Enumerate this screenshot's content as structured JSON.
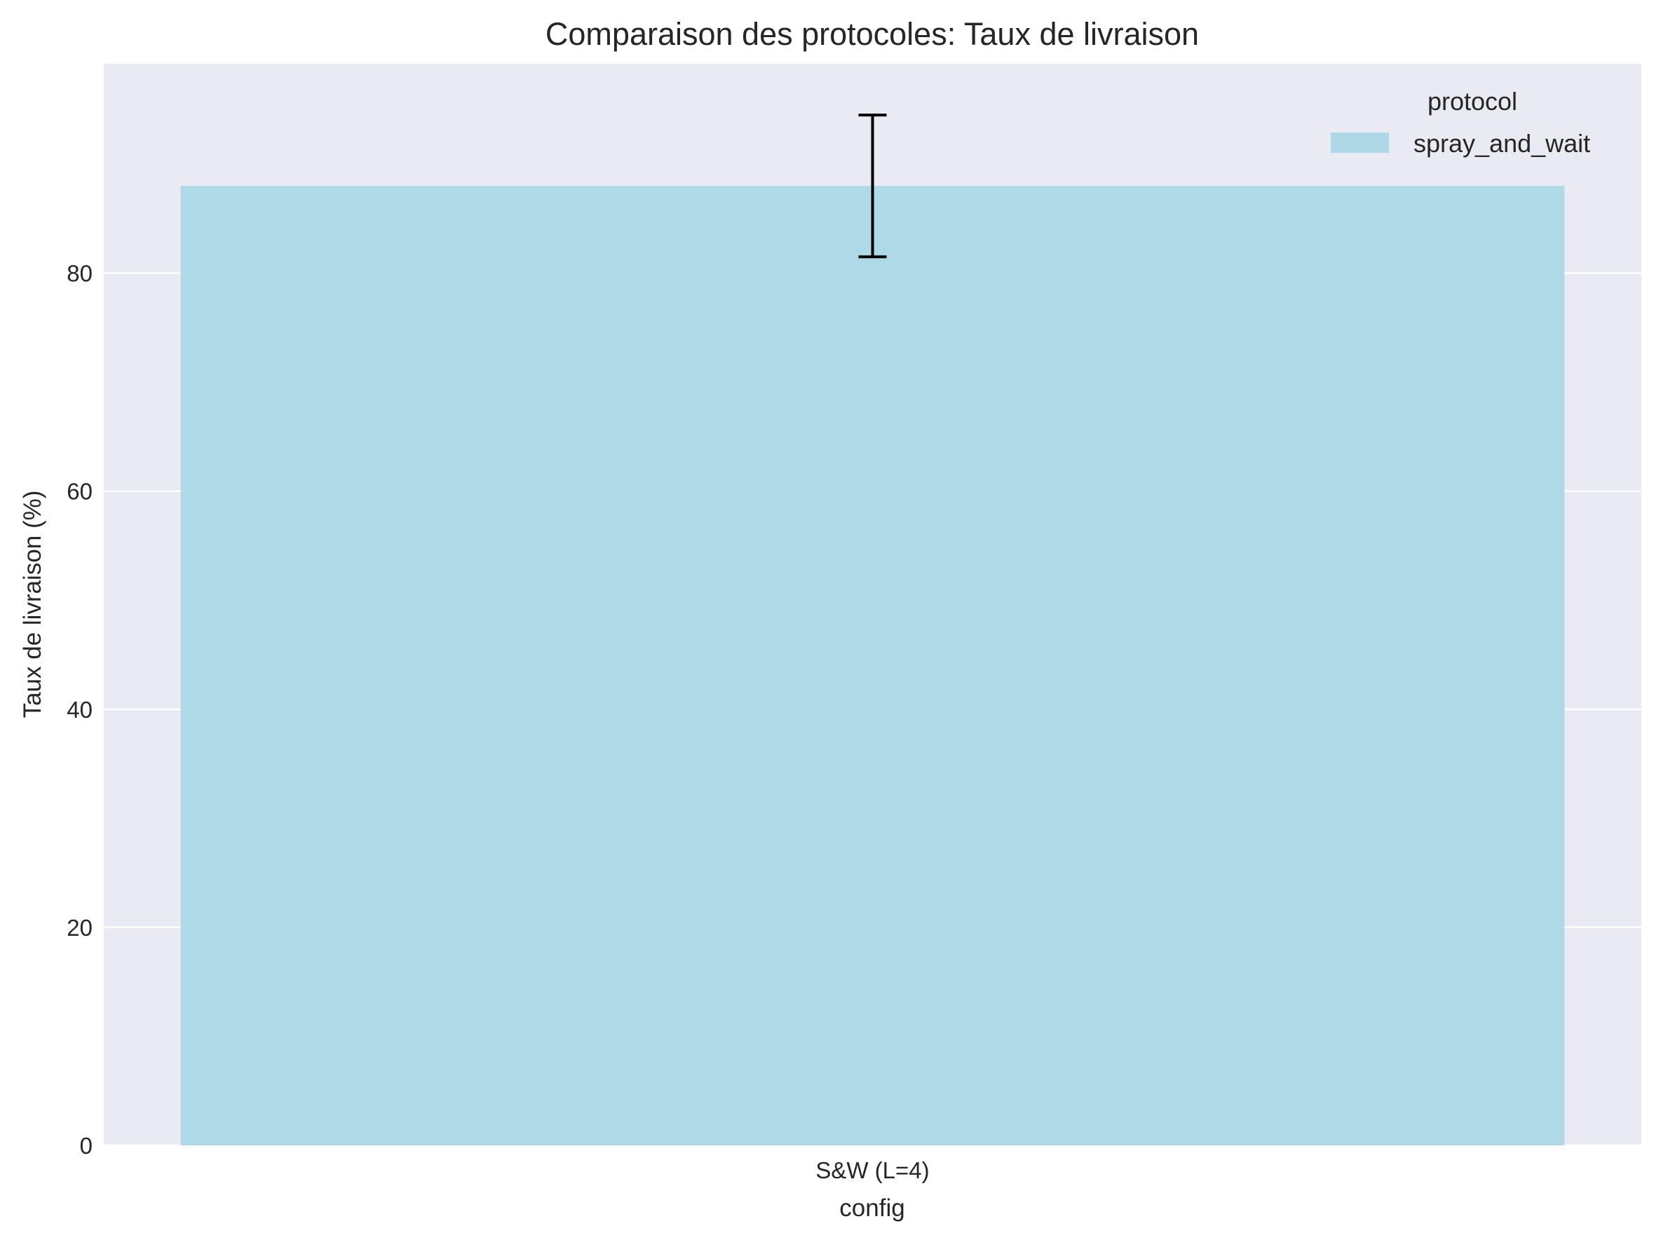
{
  "chart_data": {
    "type": "bar",
    "title": "Comparaison des protocoles: Taux de livraison",
    "xlabel": "config",
    "ylabel": "Taux de livraison (%)",
    "categories": [
      "S&W (L=4)"
    ],
    "series": [
      {
        "name": "spray_and_wait",
        "values": [
          88.0
        ],
        "error": [
          6.5
        ],
        "color": "#add8e6"
      }
    ],
    "ylim": [
      0,
      99.2
    ],
    "yticks": [
      0,
      20,
      40,
      60,
      80
    ],
    "grid": true,
    "legend": {
      "title": "protocol",
      "placement": "top-right"
    },
    "colors": {
      "plot_background": "#eaeaf2",
      "grid": "#ffffff",
      "bar": "#add8e6",
      "errorbar": "#000000"
    }
  }
}
